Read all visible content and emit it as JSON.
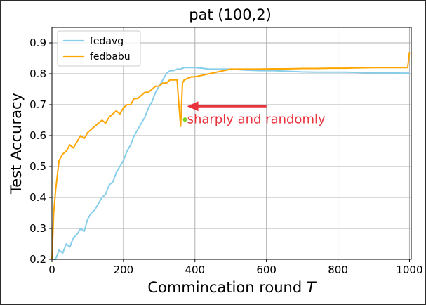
{
  "chart_data": {
    "type": "line",
    "title": "pat (100,2)",
    "xlabel": "Commincation round",
    "xlabel_italic": "T",
    "ylabel": "Test Accuracy",
    "xlim": [
      0,
      1005
    ],
    "ylim": [
      0.2,
      0.95
    ],
    "xticks": [
      0,
      200,
      400,
      600,
      800,
      1000
    ],
    "yticks": [
      0.2,
      0.3,
      0.4,
      0.5,
      0.6,
      0.7,
      0.8,
      0.9
    ],
    "grid": true,
    "legend_position": "top-left",
    "series": [
      {
        "name": "fedavg",
        "color": "#87ceeb",
        "x": [
          0,
          10,
          20,
          30,
          40,
          50,
          60,
          70,
          80,
          90,
          100,
          110,
          120,
          130,
          140,
          150,
          160,
          170,
          180,
          190,
          200,
          210,
          220,
          230,
          240,
          250,
          260,
          270,
          280,
          290,
          300,
          310,
          320,
          330,
          340,
          350,
          360,
          370,
          380,
          390,
          400,
          420,
          440,
          460,
          480,
          500,
          540,
          580,
          620,
          660,
          700,
          740,
          780,
          820,
          860,
          900,
          940,
          980,
          1000
        ],
        "y": [
          0.2,
          0.2,
          0.23,
          0.22,
          0.25,
          0.24,
          0.27,
          0.28,
          0.3,
          0.29,
          0.33,
          0.35,
          0.36,
          0.38,
          0.4,
          0.41,
          0.44,
          0.45,
          0.48,
          0.5,
          0.52,
          0.55,
          0.57,
          0.6,
          0.62,
          0.64,
          0.66,
          0.69,
          0.71,
          0.74,
          0.76,
          0.78,
          0.8,
          0.81,
          0.81,
          0.815,
          0.815,
          0.82,
          0.82,
          0.82,
          0.82,
          0.818,
          0.815,
          0.815,
          0.815,
          0.815,
          0.812,
          0.81,
          0.81,
          0.808,
          0.806,
          0.805,
          0.805,
          0.805,
          0.804,
          0.803,
          0.803,
          0.802,
          0.802
        ]
      },
      {
        "name": "fedbabu",
        "color": "#ffa500",
        "x": [
          0,
          5,
          10,
          15,
          20,
          30,
          40,
          50,
          60,
          70,
          80,
          90,
          100,
          110,
          120,
          130,
          140,
          150,
          160,
          170,
          180,
          190,
          200,
          210,
          220,
          230,
          240,
          250,
          260,
          270,
          280,
          290,
          300,
          310,
          320,
          330,
          340,
          350,
          355,
          360,
          365,
          370,
          380,
          390,
          400,
          420,
          440,
          460,
          480,
          500,
          540,
          580,
          620,
          660,
          700,
          740,
          780,
          820,
          860,
          900,
          940,
          980,
          995,
          1000
        ],
        "y": [
          0.2,
          0.35,
          0.42,
          0.47,
          0.52,
          0.54,
          0.55,
          0.57,
          0.56,
          0.58,
          0.6,
          0.59,
          0.61,
          0.62,
          0.63,
          0.64,
          0.65,
          0.64,
          0.66,
          0.67,
          0.68,
          0.67,
          0.69,
          0.7,
          0.7,
          0.72,
          0.72,
          0.73,
          0.74,
          0.74,
          0.75,
          0.76,
          0.76,
          0.77,
          0.77,
          0.78,
          0.78,
          0.78,
          0.7,
          0.63,
          0.77,
          0.78,
          0.785,
          0.79,
          0.79,
          0.795,
          0.8,
          0.805,
          0.81,
          0.815,
          0.815,
          0.815,
          0.816,
          0.816,
          0.817,
          0.817,
          0.818,
          0.818,
          0.819,
          0.82,
          0.82,
          0.82,
          0.82,
          0.87
        ]
      }
    ],
    "annotation": {
      "text": "sharply and randomly",
      "color": "#e8323c",
      "dot_color": "#7ed321",
      "dot_x": 372,
      "dot_y": 0.652,
      "arrow_tip_x": 378,
      "arrow_tip_y": 0.695,
      "arrow_tail_x": 600,
      "arrow_tail_y": 0.695,
      "text_x": 378,
      "text_y": 0.64
    }
  }
}
